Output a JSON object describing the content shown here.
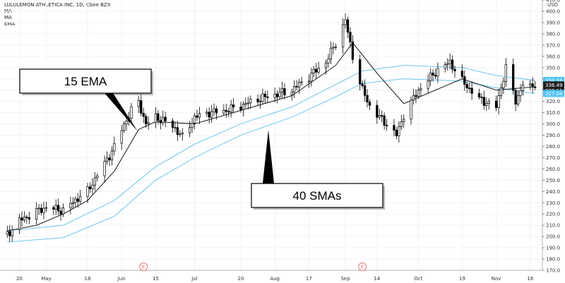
{
  "legend": {
    "symbol_line": "LULULEMON ATHLETICA INC, 1D, Cboe BZX",
    "indicators": [
      "MA",
      "MA",
      "EMA"
    ]
  },
  "currency_label": "USD",
  "colors": {
    "bull": "#ffffff",
    "bear": "#000000",
    "ema": "#000000",
    "sma": "#5bc0eb",
    "price_tag_dark": "#1f1f1f",
    "price_tag_blue": "#4fc3f7",
    "earnings_marker": "#e57373"
  },
  "callouts": [
    {
      "label": "15 EMA"
    },
    {
      "label": "40 SMAs"
    }
  ],
  "price_tags": [
    {
      "value": "338.58",
      "style": "blue"
    },
    {
      "value": "336.49",
      "style": "dark"
    },
    {
      "value": "332.11",
      "style": "dark"
    },
    {
      "value": "327.04",
      "style": "blue"
    }
  ],
  "earnings_markers": [
    {
      "label": "E",
      "date": "Jun 10"
    },
    {
      "label": "E",
      "date": "Sep 8"
    }
  ],
  "chart_data": {
    "type": "candlestick",
    "title": "LULULEMON ATHLETICA INC, 1D, Cboe BZX",
    "ylim": [
      170,
      410
    ],
    "y_ticks": [
      170,
      180,
      190,
      200,
      210,
      220,
      230,
      240,
      250,
      260,
      270,
      280,
      290,
      300,
      310,
      320,
      330,
      340,
      350,
      360,
      370,
      380,
      390,
      400,
      410
    ],
    "x_ticks": [
      {
        "label": "20",
        "date": "Apr 20"
      },
      {
        "label": "May",
        "date": "May 1"
      },
      {
        "label": "18",
        "date": "May 18"
      },
      {
        "label": "Jun",
        "date": "Jun 1"
      },
      {
        "label": "15",
        "date": "Jun 15"
      },
      {
        "label": "Jul",
        "date": "Jul 1"
      },
      {
        "label": "20",
        "date": "Jul 20"
      },
      {
        "label": "Aug",
        "date": "Aug 3"
      },
      {
        "label": "17",
        "date": "Aug 17"
      },
      {
        "label": "Sep",
        "date": "Sep 1"
      },
      {
        "label": "14",
        "date": "Sep 14"
      },
      {
        "label": "Oct",
        "date": "Oct 1"
      },
      {
        "label": "19",
        "date": "Oct 19"
      },
      {
        "label": "Nov",
        "date": "Nov 2"
      },
      {
        "label": "16",
        "date": "Nov 16"
      }
    ],
    "close_series": [
      {
        "date": "Apr 15",
        "close": 202
      },
      {
        "date": "Apr 20",
        "close": 214
      },
      {
        "date": "Apr 27",
        "close": 222
      },
      {
        "date": "May 1",
        "close": 226
      },
      {
        "date": "May 8",
        "close": 223
      },
      {
        "date": "May 15",
        "close": 236
      },
      {
        "date": "May 18",
        "close": 240
      },
      {
        "date": "May 22",
        "close": 255
      },
      {
        "date": "May 26",
        "close": 268
      },
      {
        "date": "May 29",
        "close": 280
      },
      {
        "date": "Jun 1",
        "close": 295
      },
      {
        "date": "Jun 5",
        "close": 312
      },
      {
        "date": "Jun 8",
        "close": 319
      },
      {
        "date": "Jun 11",
        "close": 300
      },
      {
        "date": "Jun 15",
        "close": 306
      },
      {
        "date": "Jun 19",
        "close": 302
      },
      {
        "date": "Jun 23",
        "close": 296
      },
      {
        "date": "Jun 26",
        "close": 288
      },
      {
        "date": "Jul 1",
        "close": 306
      },
      {
        "date": "Jul 7",
        "close": 310
      },
      {
        "date": "Jul 14",
        "close": 312
      },
      {
        "date": "Jul 20",
        "close": 316
      },
      {
        "date": "Jul 27",
        "close": 322
      },
      {
        "date": "Aug 3",
        "close": 326
      },
      {
        "date": "Aug 10",
        "close": 330
      },
      {
        "date": "Aug 17",
        "close": 342
      },
      {
        "date": "Aug 24",
        "close": 355
      },
      {
        "date": "Aug 28",
        "close": 372
      },
      {
        "date": "Sep 1",
        "close": 392
      },
      {
        "date": "Sep 4",
        "close": 360
      },
      {
        "date": "Sep 8",
        "close": 330
      },
      {
        "date": "Sep 11",
        "close": 316
      },
      {
        "date": "Sep 14",
        "close": 308
      },
      {
        "date": "Sep 18",
        "close": 300
      },
      {
        "date": "Sep 22",
        "close": 290
      },
      {
        "date": "Sep 25",
        "close": 308
      },
      {
        "date": "Oct 1",
        "close": 330
      },
      {
        "date": "Oct 8",
        "close": 346
      },
      {
        "date": "Oct 14",
        "close": 355
      },
      {
        "date": "Oct 19",
        "close": 338
      },
      {
        "date": "Oct 26",
        "close": 322
      },
      {
        "date": "Nov 2",
        "close": 315
      },
      {
        "date": "Nov 6",
        "close": 350
      },
      {
        "date": "Nov 10",
        "close": 320
      },
      {
        "date": "Nov 13",
        "close": 335
      },
      {
        "date": "Nov 16",
        "close": 332
      },
      {
        "date": "Nov 18",
        "close": 336
      }
    ],
    "series": [
      {
        "name": "15 EMA",
        "values": [
          {
            "date": "Apr 15",
            "value": 205
          },
          {
            "date": "Apr 27",
            "value": 210
          },
          {
            "date": "May 8",
            "value": 220
          },
          {
            "date": "May 18",
            "value": 232
          },
          {
            "date": "May 29",
            "value": 258
          },
          {
            "date": "Jun 8",
            "value": 295
          },
          {
            "date": "Jun 15",
            "value": 302
          },
          {
            "date": "Jul 1",
            "value": 300
          },
          {
            "date": "Jul 20",
            "value": 312
          },
          {
            "date": "Aug 10",
            "value": 325
          },
          {
            "date": "Aug 28",
            "value": 352
          },
          {
            "date": "Sep 4",
            "value": 372
          },
          {
            "date": "Sep 14",
            "value": 345
          },
          {
            "date": "Sep 25",
            "value": 318
          },
          {
            "date": "Oct 8",
            "value": 330
          },
          {
            "date": "Oct 19",
            "value": 340
          },
          {
            "date": "Nov 2",
            "value": 330
          },
          {
            "date": "Nov 18",
            "value": 333
          }
        ]
      },
      {
        "name": "40 SMA",
        "values": [
          {
            "date": "Apr 15",
            "value": 205
          },
          {
            "date": "May 8",
            "value": 210
          },
          {
            "date": "May 29",
            "value": 232
          },
          {
            "date": "Jun 15",
            "value": 262
          },
          {
            "date": "Jul 1",
            "value": 282
          },
          {
            "date": "Jul 20",
            "value": 300
          },
          {
            "date": "Aug 10",
            "value": 315
          },
          {
            "date": "Aug 28",
            "value": 335
          },
          {
            "date": "Sep 8",
            "value": 347
          },
          {
            "date": "Sep 25",
            "value": 352
          },
          {
            "date": "Oct 19",
            "value": 350
          },
          {
            "date": "Nov 2",
            "value": 343
          },
          {
            "date": "Nov 18",
            "value": 338.58
          }
        ]
      },
      {
        "name": "40 SMA (2)",
        "values": [
          {
            "date": "Apr 15",
            "value": 195
          },
          {
            "date": "May 8",
            "value": 199
          },
          {
            "date": "May 29",
            "value": 218
          },
          {
            "date": "Jun 15",
            "value": 250
          },
          {
            "date": "Jul 1",
            "value": 270
          },
          {
            "date": "Jul 20",
            "value": 290
          },
          {
            "date": "Aug 10",
            "value": 306
          },
          {
            "date": "Aug 28",
            "value": 324
          },
          {
            "date": "Sep 8",
            "value": 336
          },
          {
            "date": "Sep 25",
            "value": 340
          },
          {
            "date": "Oct 19",
            "value": 338
          },
          {
            "date": "Nov 2",
            "value": 332
          },
          {
            "date": "Nov 18",
            "value": 327.04
          }
        ]
      }
    ],
    "grid": true
  }
}
